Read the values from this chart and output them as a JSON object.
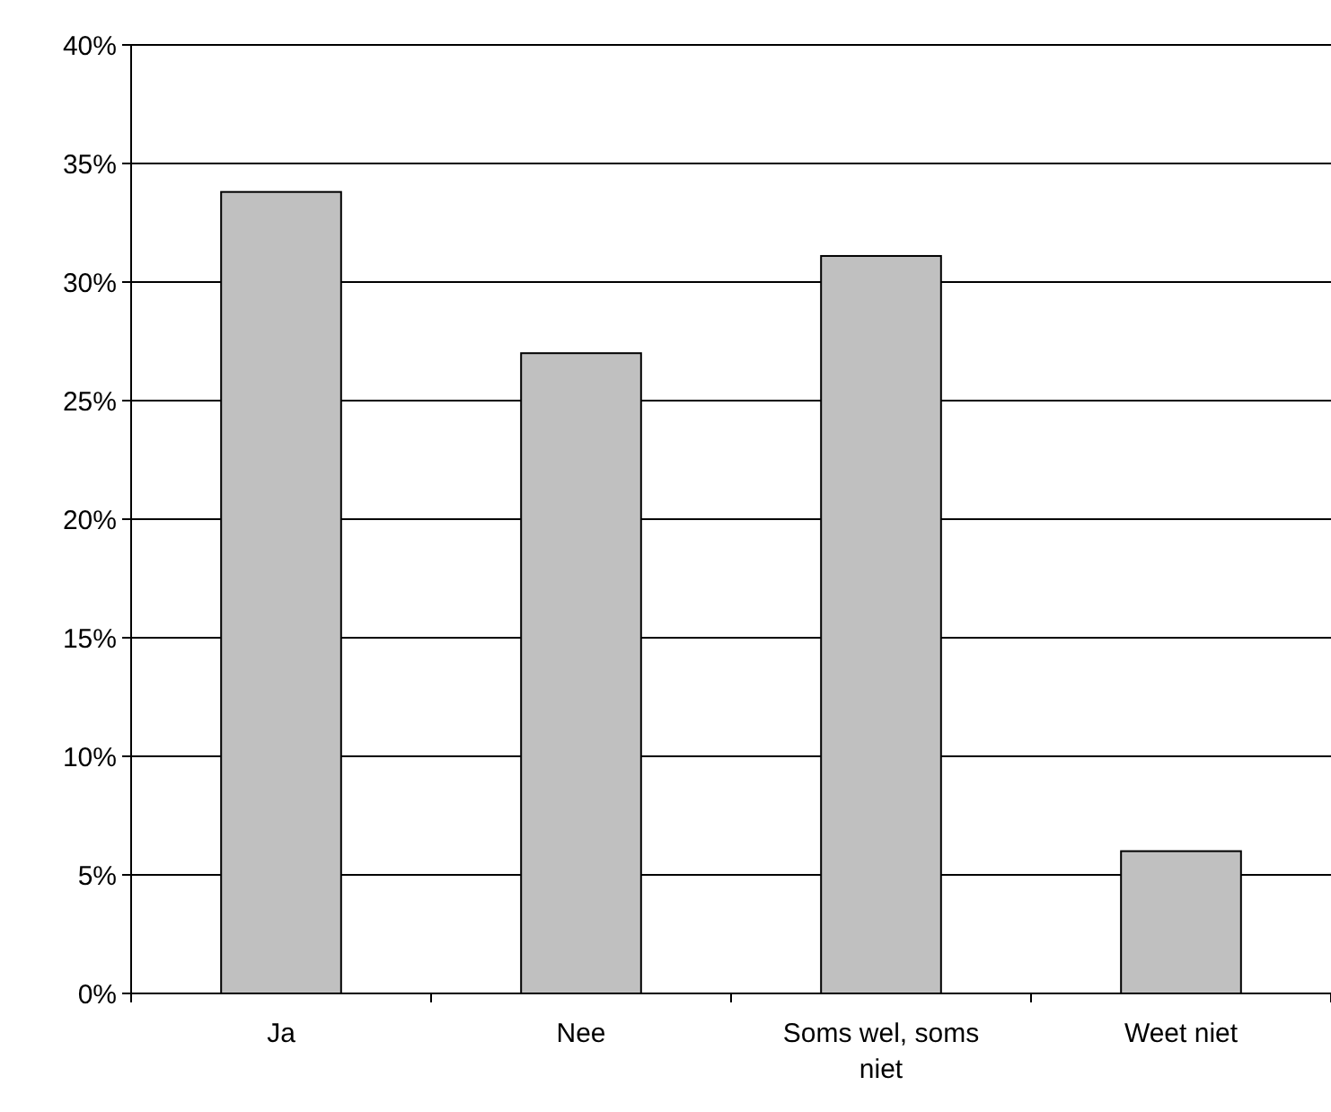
{
  "chart_data": {
    "type": "bar",
    "categories": [
      "Ja",
      "Nee",
      "Soms wel, soms niet",
      "Weet niet"
    ],
    "values": [
      33.8,
      27.0,
      31.1,
      6.0
    ],
    "color": "#c0c0c0",
    "ylim": [
      0,
      40
    ],
    "yticks": [
      {
        "value": 0,
        "label": "0%"
      },
      {
        "value": 5,
        "label": "5%"
      },
      {
        "value": 10,
        "label": "10%"
      },
      {
        "value": 15,
        "label": "15%"
      },
      {
        "value": 20,
        "label": "20%"
      },
      {
        "value": 25,
        "label": "25%"
      },
      {
        "value": 30,
        "label": "30%"
      },
      {
        "value": 35,
        "label": "35%"
      },
      {
        "value": 40,
        "label": "40%"
      }
    ],
    "grid": "y"
  }
}
